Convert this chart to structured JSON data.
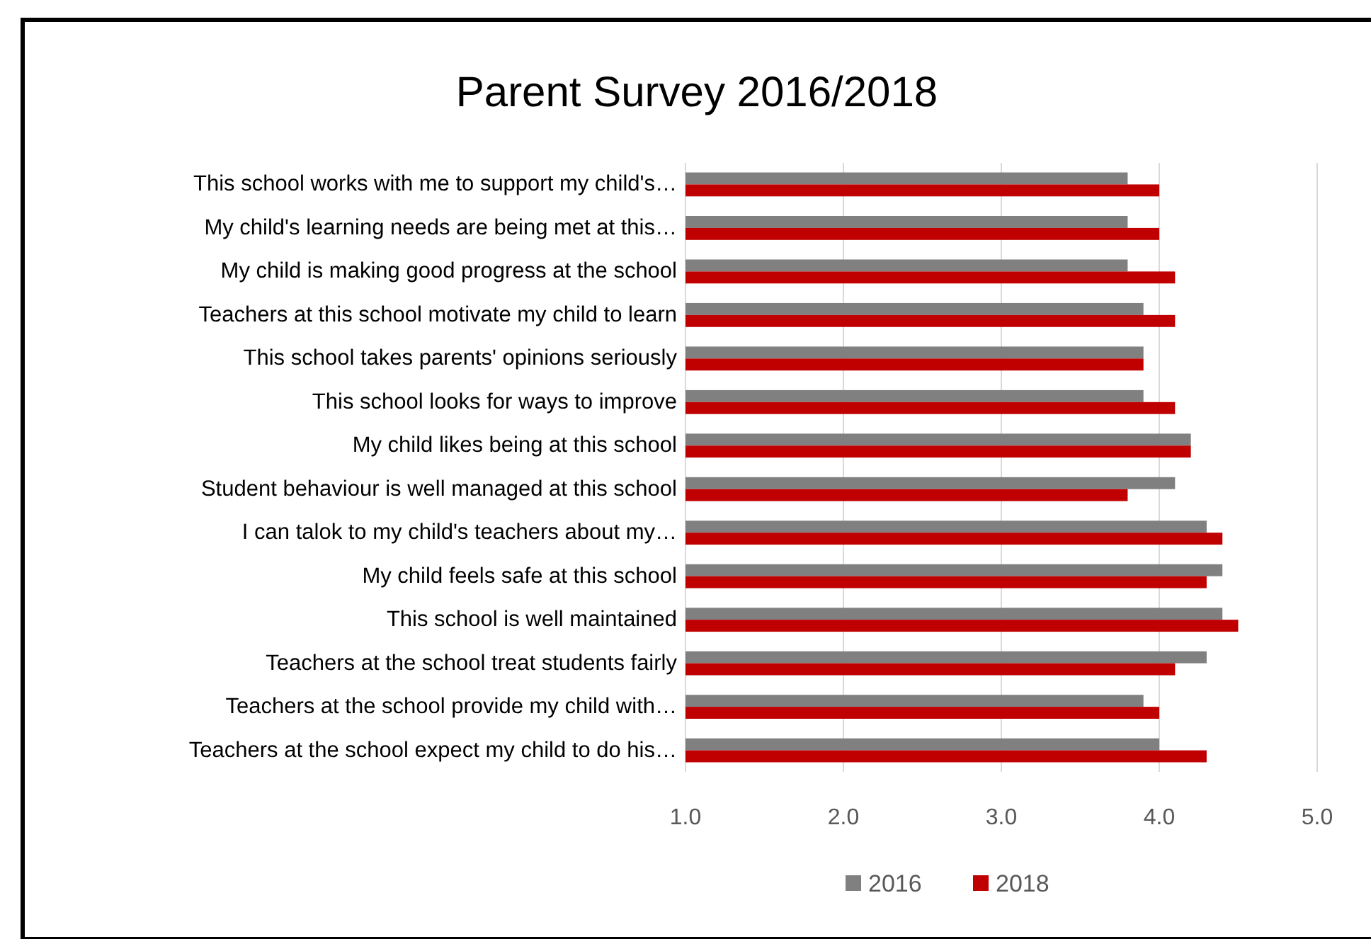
{
  "chart_data": {
    "type": "bar",
    "orientation": "horizontal",
    "title": "Parent Survey 2016/2018",
    "categories": [
      "This school works with me to support my child's…",
      "My child's learning needs are being met at this…",
      "My child is making good progress at the school",
      "Teachers at this school motivate my child to learn",
      "This school takes parents' opinions seriously",
      "This school looks for ways to improve",
      "My child likes being at this school",
      "Student behaviour is well managed at this school",
      "I can talok to my child's teachers about my…",
      "My child feels safe at this school",
      "This school is well maintained",
      "Teachers at the school treat students fairly",
      "Teachers at the school provide my child with…",
      "Teachers at the school expect my child to do his…"
    ],
    "series": [
      {
        "name": "2016",
        "color": "#808080",
        "values": [
          3.8,
          3.8,
          3.8,
          3.9,
          3.9,
          3.9,
          4.2,
          4.1,
          4.3,
          4.4,
          4.4,
          4.3,
          3.9,
          4.0
        ]
      },
      {
        "name": "2018",
        "color": "#c00000",
        "values": [
          4.0,
          4.0,
          4.1,
          4.1,
          3.9,
          4.1,
          4.2,
          3.8,
          4.4,
          4.3,
          4.5,
          4.1,
          4.0,
          4.3
        ]
      }
    ],
    "xlim": [
      1,
      5
    ],
    "xticks": [
      {
        "value": 1,
        "label": "1.0"
      },
      {
        "value": 2,
        "label": "2.0"
      },
      {
        "value": 3,
        "label": "3.0"
      },
      {
        "value": 4,
        "label": "4.0"
      },
      {
        "value": 5,
        "label": "5.0"
      }
    ],
    "grid": "x",
    "legend": "bottom"
  }
}
